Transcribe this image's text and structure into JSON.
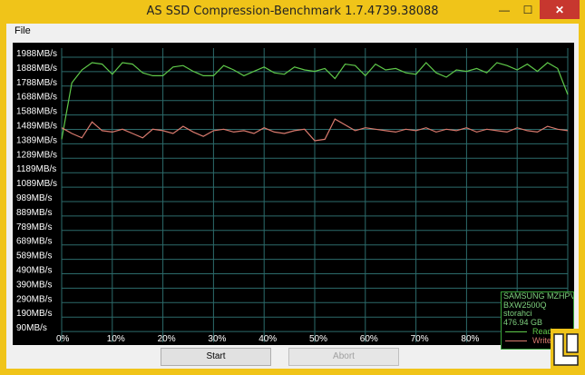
{
  "window": {
    "title": "AS SSD Compression-Benchmark 1.7.4739.38088",
    "minimize_glyph": "—",
    "maximize_glyph": "☐",
    "close_glyph": "✕"
  },
  "menu": {
    "file_label": "File"
  },
  "buttons": {
    "start_label": "Start",
    "abort_label": "Abort"
  },
  "legend": {
    "device": "SAMSUNG MZHPV",
    "firmware": "BXW2500Q",
    "driver": "storahci",
    "capacity": "476.94 GB",
    "read_label": "Read",
    "write_label": "Write"
  },
  "colors": {
    "read": "#5fc94a",
    "write": "#d97a6e",
    "grid": "#2c6b6b",
    "background": "#000000"
  },
  "chart_data": {
    "type": "line",
    "y_tick_labels": [
      "1988MB/s",
      "1888MB/s",
      "1788MB/s",
      "1688MB/s",
      "1588MB/s",
      "1489MB/s",
      "1389MB/s",
      "1289MB/s",
      "1189MB/s",
      "1089MB/s",
      "989MB/s",
      "889MB/s",
      "789MB/s",
      "689MB/s",
      "589MB/s",
      "490MB/s",
      "390MB/s",
      "290MB/s",
      "190MB/s",
      "90MB/s"
    ],
    "x_tick_labels": [
      "0%",
      "10%",
      "20%",
      "30%",
      "40%",
      "50%",
      "60%",
      "70%",
      "80%"
    ],
    "xlim": [
      0,
      100
    ],
    "ylim": [
      40,
      2020
    ],
    "grid": true,
    "legend_position": "bottom-right",
    "series": [
      {
        "name": "Read",
        "x": [
          0,
          2,
          4,
          6,
          8,
          10,
          12,
          14,
          16,
          18,
          20,
          22,
          24,
          26,
          28,
          30,
          32,
          34,
          36,
          38,
          40,
          42,
          44,
          46,
          48,
          50,
          52,
          54,
          56,
          58,
          60,
          62,
          64,
          66,
          68,
          70,
          72,
          74,
          76,
          78,
          80,
          82,
          84,
          86,
          88,
          90,
          92,
          94,
          96,
          98,
          100
        ],
        "values": [
          1420,
          1810,
          1900,
          1950,
          1940,
          1870,
          1950,
          1940,
          1880,
          1860,
          1860,
          1920,
          1930,
          1890,
          1860,
          1860,
          1930,
          1900,
          1860,
          1890,
          1920,
          1880,
          1870,
          1920,
          1900,
          1890,
          1910,
          1840,
          1940,
          1930,
          1860,
          1940,
          1900,
          1910,
          1880,
          1870,
          1950,
          1880,
          1850,
          1900,
          1890,
          1910,
          1880,
          1950,
          1930,
          1900,
          1940,
          1890,
          1950,
          1910,
          1730
        ]
      },
      {
        "name": "Write",
        "x": [
          0,
          2,
          4,
          6,
          8,
          10,
          12,
          14,
          16,
          18,
          20,
          22,
          24,
          26,
          28,
          30,
          32,
          34,
          36,
          38,
          40,
          42,
          44,
          46,
          48,
          50,
          52,
          54,
          56,
          58,
          60,
          62,
          64,
          66,
          68,
          70,
          72,
          74,
          76,
          78,
          80,
          82,
          84,
          86,
          88,
          90,
          92,
          94,
          96,
          98,
          100
        ],
        "values": [
          1500,
          1460,
          1430,
          1540,
          1480,
          1470,
          1490,
          1460,
          1430,
          1490,
          1480,
          1460,
          1510,
          1470,
          1440,
          1480,
          1490,
          1470,
          1480,
          1460,
          1500,
          1470,
          1460,
          1480,
          1490,
          1410,
          1420,
          1560,
          1520,
          1480,
          1500,
          1490,
          1480,
          1470,
          1490,
          1480,
          1500,
          1470,
          1490,
          1480,
          1500,
          1470,
          1490,
          1480,
          1470,
          1500,
          1480,
          1470,
          1510,
          1490,
          1480
        ]
      }
    ]
  }
}
